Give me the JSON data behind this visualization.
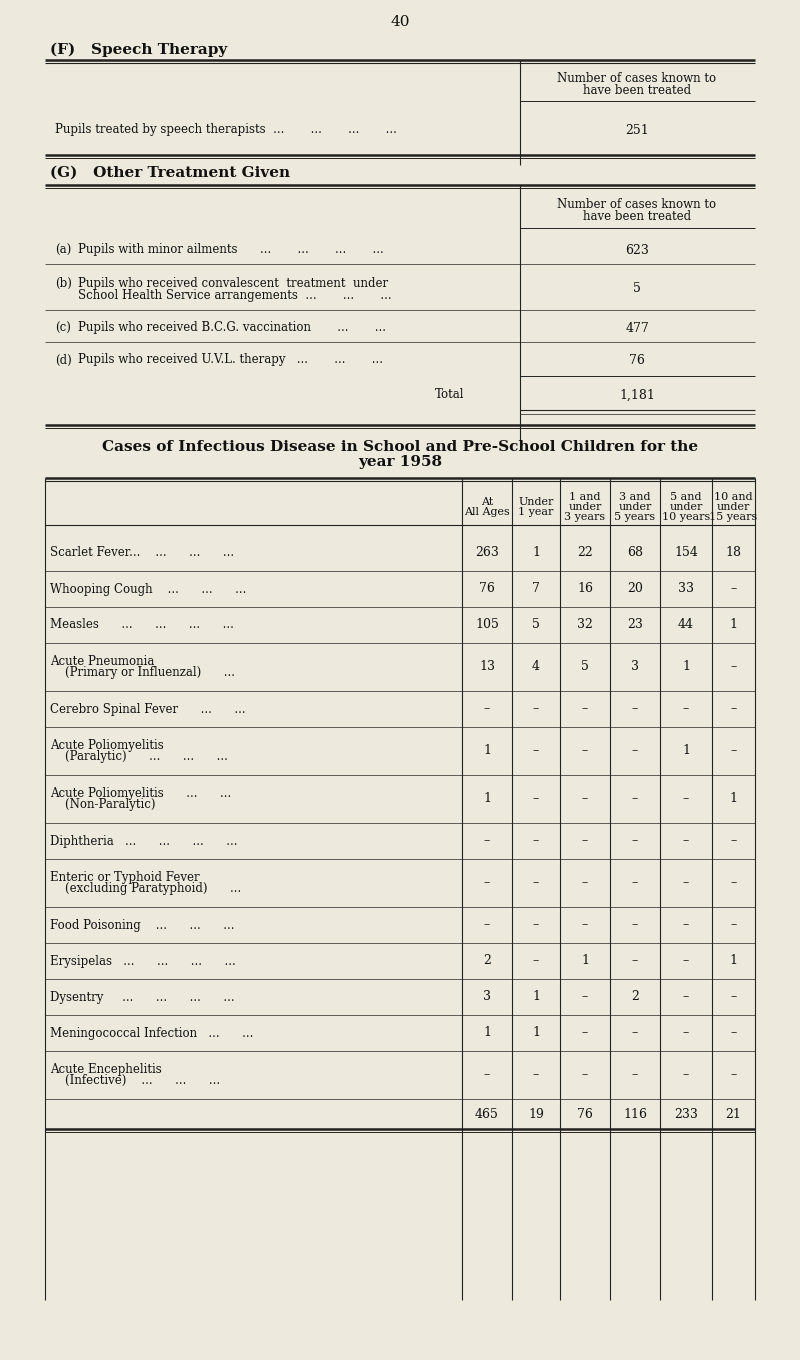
{
  "bg_color": "#edeadd",
  "page_number": "40",
  "section_f_title": "(F)   Speech Therapy",
  "section_f_col_header1": "Number of cases known to",
  "section_f_col_header2": "have been treated",
  "section_f_row_label": "Pupils treated by speech therapists  ...       ...       ...       ...",
  "section_f_value": "251",
  "section_g_title": "(G)   Other Treatment Given",
  "section_g_col_header1": "Number of cases known to",
  "section_g_col_header2": "have been treated",
  "section_g_rows": [
    {
      "label_a": "(a)",
      "label_b": "Pupils with minor ailments      ...       ...       ...       ...",
      "value": "623"
    },
    {
      "label_a": "(b)",
      "label_b": "Pupils who received convalescent  treatment  under",
      "label_c": "School Health Service arrangements  ...       ...       ...",
      "value": "5"
    },
    {
      "label_a": "(c)",
      "label_b": "Pupils who received B.C.G. vaccination       ...       ...",
      "value": "477"
    },
    {
      "label_a": "(d)",
      "label_b": "Pupils who received U.V.L. therapy   ...       ...       ...",
      "value": "76"
    }
  ],
  "section_g_total_label": "Total",
  "section_g_total_value": "1,181",
  "infectious_title1": "Cases of Infectious Disease in School and Pre-School Children for the",
  "infectious_title2": "year 1958",
  "infectious_col_headers": [
    [
      "At",
      "All Ages"
    ],
    [
      "Under",
      "1 year"
    ],
    [
      "1 and",
      "under",
      "3 years"
    ],
    [
      "3 and",
      "under",
      "5 years"
    ],
    [
      "5 and",
      "under",
      "10 years"
    ],
    [
      "10 and",
      "under",
      "15 years"
    ]
  ],
  "infectious_rows": [
    {
      "label": [
        "Scarlet Fever...    ...      ...      ..."
      ],
      "values": [
        "263",
        "1",
        "22",
        "68",
        "154",
        "18"
      ]
    },
    {
      "label": [
        "Whooping Cough    ...      ...      ..."
      ],
      "values": [
        "76",
        "7",
        "16",
        "20",
        "33",
        "–"
      ]
    },
    {
      "label": [
        "Measles      ...      ...      ...      ..."
      ],
      "values": [
        "105",
        "5",
        "32",
        "23",
        "44",
        "1"
      ]
    },
    {
      "label": [
        "Acute Pneumonia",
        "    (Primary or Influenzal)      ..."
      ],
      "values": [
        "13",
        "4",
        "5",
        "3",
        "1",
        "–"
      ]
    },
    {
      "label": [
        "Cerebro Spinal Fever      ...      ..."
      ],
      "values": [
        "–",
        "–",
        "–",
        "–",
        "–",
        "–"
      ]
    },
    {
      "label": [
        "Acute Poliomyelitis",
        "    (Paralytic)      ...      ...      ..."
      ],
      "values": [
        "1",
        "–",
        "–",
        "–",
        "1",
        "–"
      ]
    },
    {
      "label": [
        "Acute Poliomyelitis      ...      ...",
        "    (Non-Paralytic)"
      ],
      "values": [
        "1",
        "–",
        "–",
        "–",
        "–",
        "1"
      ]
    },
    {
      "label": [
        "Diphtheria   ...      ...      ...      ..."
      ],
      "values": [
        "–",
        "–",
        "–",
        "–",
        "–",
        "–"
      ]
    },
    {
      "label": [
        "Enteric or Typhoid Fever",
        "    (excluding Paratyphoid)      ..."
      ],
      "values": [
        "–",
        "–",
        "–",
        "–",
        "–",
        "–"
      ]
    },
    {
      "label": [
        "Food Poisoning    ...      ...      ..."
      ],
      "values": [
        "–",
        "–",
        "–",
        "–",
        "–",
        "–"
      ]
    },
    {
      "label": [
        "Erysipelas   ...      ...      ...      ..."
      ],
      "values": [
        "2",
        "–",
        "1",
        "–",
        "–",
        "1"
      ]
    },
    {
      "label": [
        "Dysentry     ...      ...      ...      ..."
      ],
      "values": [
        "3",
        "1",
        "–",
        "2",
        "–",
        "–"
      ]
    },
    {
      "label": [
        "Meningococcal Infection   ...      ..."
      ],
      "values": [
        "1",
        "1",
        "–",
        "–",
        "–",
        "–"
      ]
    },
    {
      "label": [
        "Acute Encephelitis",
        "    (Infective)    ...      ...      ..."
      ],
      "values": [
        "–",
        "–",
        "–",
        "–",
        "–",
        "–"
      ]
    }
  ],
  "infectious_totals": [
    "465",
    "19",
    "76",
    "116",
    "233",
    "21"
  ],
  "text_color": "#111111",
  "line_color": "#222222"
}
